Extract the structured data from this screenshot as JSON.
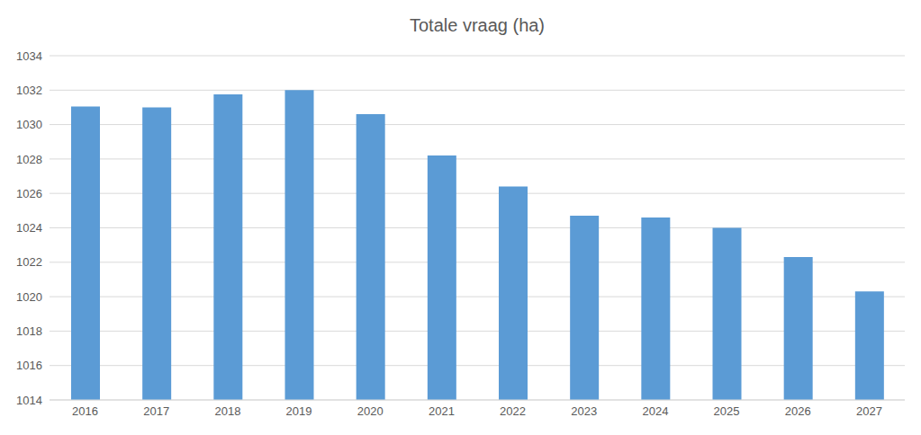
{
  "chart_data": {
    "type": "bar",
    "title": "Totale vraag (ha)",
    "categories": [
      "2016",
      "2017",
      "2018",
      "2019",
      "2020",
      "2021",
      "2022",
      "2023",
      "2024",
      "2025",
      "2026",
      "2027"
    ],
    "values": [
      1031.05,
      1031.0,
      1031.75,
      1032.0,
      1030.6,
      1028.2,
      1026.4,
      1024.7,
      1024.6,
      1024.0,
      1022.3,
      1020.3
    ],
    "color": "#5b9bd5",
    "ylim": [
      1014,
      1034
    ],
    "yticks": [
      1014,
      1016,
      1018,
      1020,
      1022,
      1024,
      1026,
      1028,
      1030,
      1032,
      1034
    ],
    "grid": true
  }
}
